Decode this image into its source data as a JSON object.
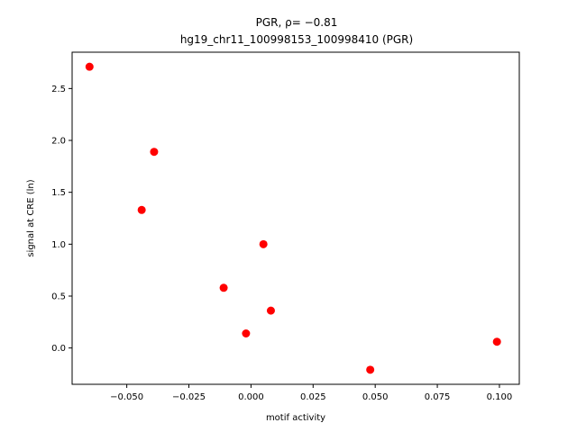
{
  "chart_data": {
    "type": "scatter",
    "title_lines": [
      "PGR, ρ= −0.81",
      "hg19_chr11_100998153_100998410 (PGR)"
    ],
    "xlabel": "motif activity",
    "ylabel": "signal at CRE (ln)",
    "xlim": [
      -0.072,
      0.108
    ],
    "ylim": [
      -0.35,
      2.85
    ],
    "xticks": [
      {
        "value": -0.05,
        "label": "−0.050"
      },
      {
        "value": -0.025,
        "label": "−0.025"
      },
      {
        "value": 0.0,
        "label": "0.000"
      },
      {
        "value": 0.025,
        "label": "0.025"
      },
      {
        "value": 0.05,
        "label": "0.050"
      },
      {
        "value": 0.075,
        "label": "0.075"
      },
      {
        "value": 0.1,
        "label": "0.100"
      }
    ],
    "yticks": [
      {
        "value": 0.0,
        "label": "0.0"
      },
      {
        "value": 0.5,
        "label": "0.5"
      },
      {
        "value": 1.0,
        "label": "1.0"
      },
      {
        "value": 1.5,
        "label": "1.5"
      },
      {
        "value": 2.0,
        "label": "2.0"
      },
      {
        "value": 2.5,
        "label": "2.5"
      }
    ],
    "grid": false,
    "point_color": "#ff0000",
    "points": [
      {
        "x": -0.065,
        "y": 2.71
      },
      {
        "x": -0.039,
        "y": 1.89
      },
      {
        "x": -0.044,
        "y": 1.33
      },
      {
        "x": 0.005,
        "y": 1.0
      },
      {
        "x": -0.011,
        "y": 0.58
      },
      {
        "x": 0.008,
        "y": 0.36
      },
      {
        "x": -0.002,
        "y": 0.14
      },
      {
        "x": 0.048,
        "y": -0.21
      },
      {
        "x": 0.099,
        "y": 0.06
      }
    ]
  }
}
